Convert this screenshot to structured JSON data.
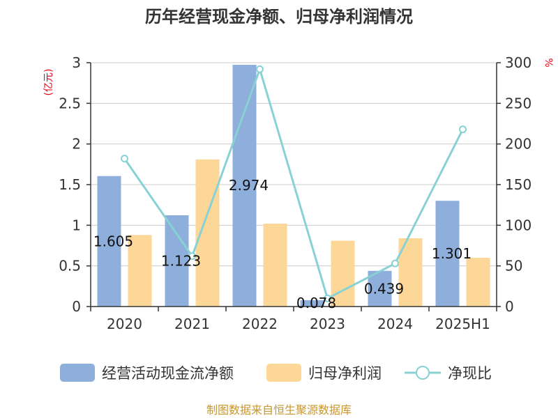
{
  "chart_data": {
    "type": "bar",
    "title": "历年经营现金净额、归母净利润情况",
    "categories": [
      "2020",
      "2021",
      "2022",
      "2023",
      "2024",
      "2025H1"
    ],
    "series": [
      {
        "name": "经营活动现金流净额",
        "type": "bar",
        "axis": "left",
        "color": "#8eaedb",
        "values": [
          1.605,
          1.123,
          2.974,
          0.078,
          0.439,
          1.301
        ],
        "labels": [
          "1.605",
          "1.123",
          "2.974",
          "0.078",
          "0.439",
          "1.301"
        ]
      },
      {
        "name": "归母净利润",
        "type": "bar",
        "axis": "left",
        "color": "#fdd798",
        "values": [
          0.88,
          1.81,
          1.02,
          0.81,
          0.84,
          0.6
        ]
      },
      {
        "name": "净现比",
        "type": "line",
        "axis": "right",
        "color": "#88d1d4",
        "values": [
          182,
          62,
          292,
          10,
          53,
          218
        ]
      }
    ],
    "y_left": {
      "unit": "(亿元)",
      "min": 0,
      "max": 3,
      "ticks": [
        0,
        0.5,
        1,
        1.5,
        2,
        2.5,
        3
      ]
    },
    "y_right": {
      "unit": "%",
      "min": 0,
      "max": 300,
      "ticks": [
        0,
        50,
        100,
        150,
        200,
        250,
        300
      ]
    },
    "grid": true,
    "legend_position": "bottom",
    "source": "制图数据来自恒生聚源数据库"
  }
}
